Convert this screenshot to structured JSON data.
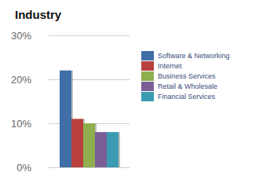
{
  "chart_data": {
    "type": "bar",
    "title": "Industry",
    "categories": [
      null
    ],
    "series": [
      {
        "name": "Software & Networking",
        "color": "#3f6ea6",
        "values": [
          22
        ]
      },
      {
        "name": "Internet",
        "color": "#b8413e",
        "values": [
          11
        ]
      },
      {
        "name": "Business Services",
        "color": "#8fae4e",
        "values": [
          10
        ]
      },
      {
        "name": "Retail & Wholesale",
        "color": "#7a5f97",
        "values": [
          8
        ]
      },
      {
        "name": "Financial Services",
        "color": "#3b9bb3",
        "values": [
          8
        ]
      }
    ],
    "ylim": [
      0,
      30
    ],
    "yticks": [
      {
        "value": 0,
        "label": "0%"
      },
      {
        "value": 10,
        "label": "10%"
      },
      {
        "value": 20,
        "label": "20%"
      },
      {
        "value": 30,
        "label": "30%"
      }
    ],
    "grid": true,
    "legend": "right",
    "tick_labels": "y"
  }
}
